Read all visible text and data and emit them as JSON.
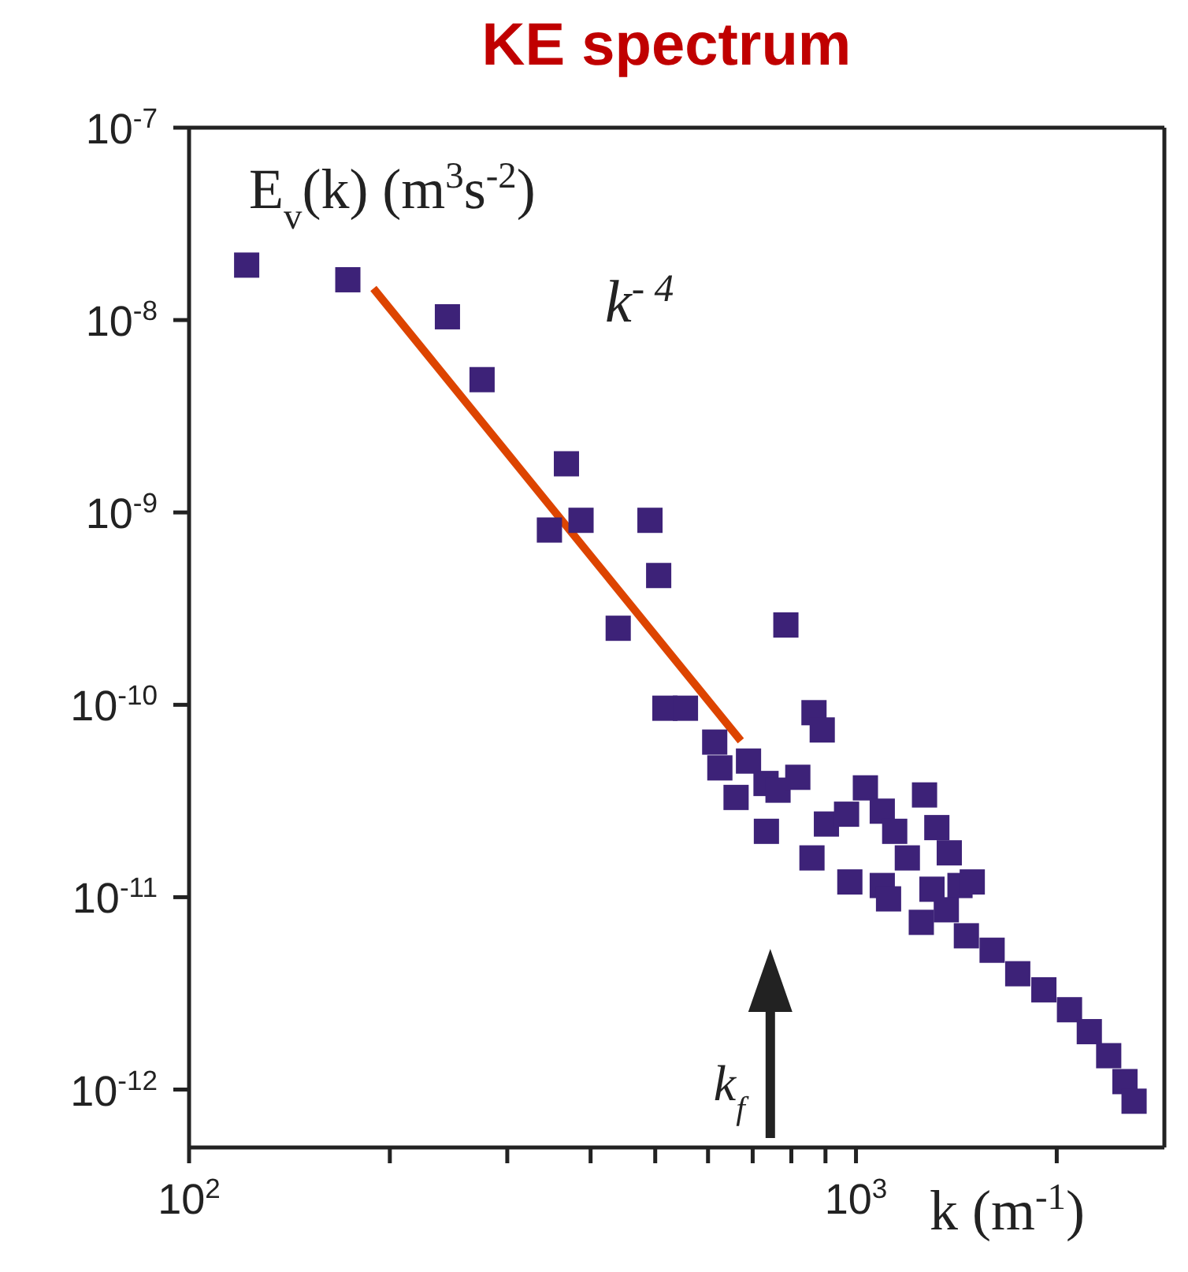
{
  "chart_data": {
    "type": "scatter",
    "title": "KE spectrum",
    "xlabel": "k (m$^{-1}$)",
    "ylabel": "E$_{v}$(k) (m$^{3}$s$^{-2}$)",
    "log": "xy",
    "xlim": [
      100,
      2900
    ],
    "ylim": [
      5e-13,
      1e-07
    ],
    "xticks": [
      {
        "value": 100,
        "label": "10$^{2}$"
      },
      {
        "value": 200,
        "label": null
      },
      {
        "value": 300,
        "label": null
      },
      {
        "value": 400,
        "label": null
      },
      {
        "value": 500,
        "label": null
      },
      {
        "value": 600,
        "label": null
      },
      {
        "value": 700,
        "label": null
      },
      {
        "value": 800,
        "label": null
      },
      {
        "value": 900,
        "label": null
      },
      {
        "value": 1000,
        "label": "10$^{3}$"
      },
      {
        "value": 2000,
        "label": null
      }
    ],
    "yticks": [
      {
        "value": 1e-12,
        "label": "10$^{-12}$"
      },
      {
        "value": 1e-11,
        "label": "10$^{-11}$"
      },
      {
        "value": 1e-10,
        "label": "10$^{-10}$"
      },
      {
        "value": 1e-09,
        "label": "10$^{-9}$"
      },
      {
        "value": 1e-08,
        "label": "10$^{-8}$"
      },
      {
        "value": 1e-07,
        "label": "10$^{-7}$"
      }
    ],
    "series": [
      {
        "marker": "square",
        "color": "#3d2278",
        "x": [
          122,
          173,
          244,
          275,
          347,
          368,
          387,
          440,
          491,
          506,
          517,
          555,
          614,
          625,
          661,
          690,
          733,
          764,
          818,
          785,
          865,
          890,
          734,
          859,
          1033,
          1267,
          903,
          968,
          1095,
          1143,
          1322,
          1380,
          979,
          1095,
          1194,
          1432,
          1119,
          1253,
          1366,
          1464,
          1600,
          1748,
          1913,
          2090,
          2238,
          2393,
          2531,
          2612,
          1300,
          1494
        ],
        "values": [
          1.93e-08,
          1.62e-08,
          1.04e-08,
          4.9e-09,
          8.1e-10,
          1.79e-09,
          9.1e-10,
          2.5e-10,
          9.1e-10,
          4.7e-10,
          9.6e-11,
          9.6e-11,
          6.4e-11,
          4.7e-11,
          3.3e-11,
          5.1e-11,
          3.9e-11,
          3.6e-11,
          4.2e-11,
          2.6e-10,
          9.1e-11,
          7.4e-11,
          2.2e-11,
          1.6e-11,
          3.7e-11,
          3.4e-11,
          2.4e-11,
          2.7e-11,
          2.8e-11,
          2.2e-11,
          2.3e-11,
          1.7e-11,
          1.2e-11,
          1.15e-11,
          1.6e-11,
          1.15e-11,
          9.8e-12,
          7.4e-12,
          8.6e-12,
          6.3e-12,
          5.3e-12,
          4e-12,
          3.3e-12,
          2.6e-12,
          2e-12,
          1.5e-12,
          1.1e-12,
          8.7e-13,
          1.1e-11,
          1.2e-11
        ]
      },
      {
        "type": "line",
        "name": "k$^{- 4}$",
        "color": "#dd4400",
        "x": [
          189,
          672
        ],
        "values": [
          1.46e-08,
          6.5e-11
        ]
      }
    ],
    "annotations": [
      "k$_{f}$"
    ]
  }
}
